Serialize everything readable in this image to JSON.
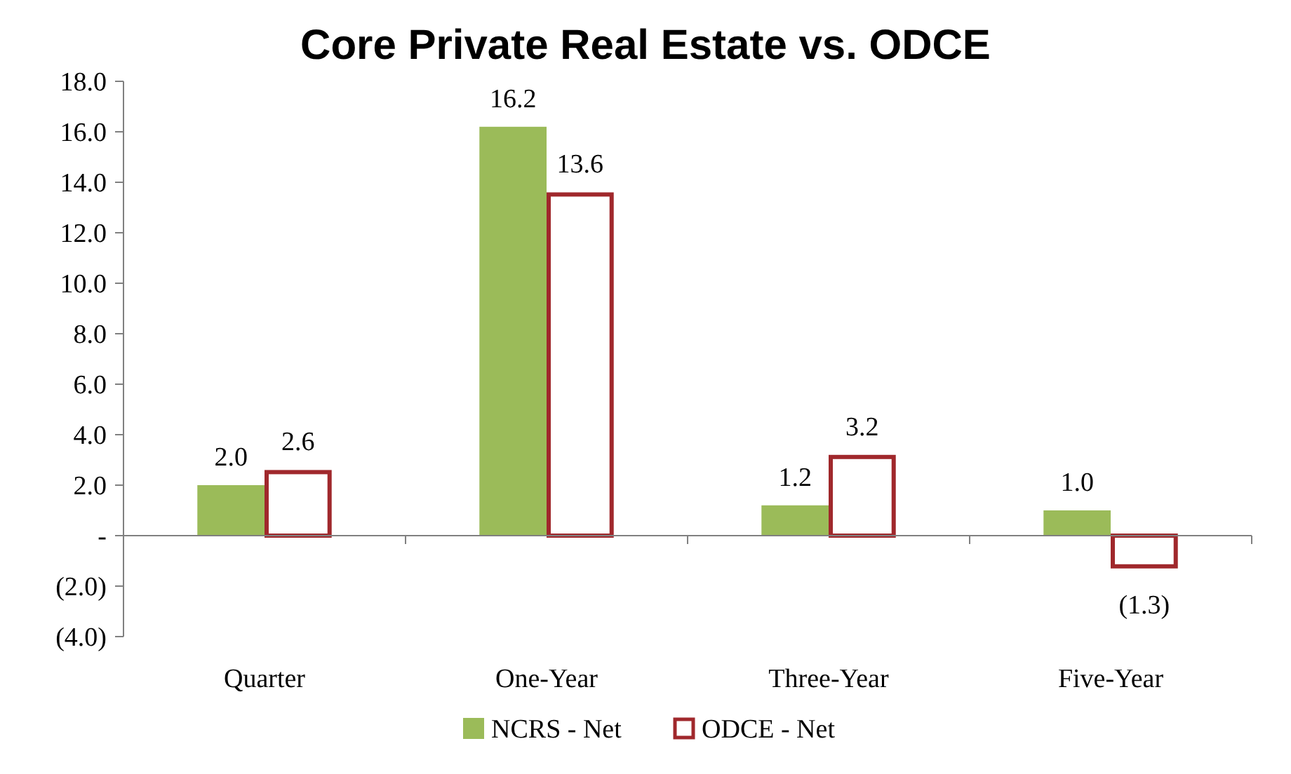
{
  "chart_data": {
    "type": "bar",
    "title": "Core Private Real Estate vs. ODCE",
    "categories": [
      "Quarter",
      "One-Year",
      "Three-Year",
      "Five-Year"
    ],
    "series": [
      {
        "name": "NCRS - Net",
        "color": "#9bbb59",
        "values": [
          2.0,
          16.2,
          1.2,
          1.0
        ],
        "value_labels": [
          "2.0",
          "16.2",
          "1.2",
          "1.0"
        ]
      },
      {
        "name": "ODCE - Net",
        "color": "#a0282c",
        "values": [
          2.6,
          13.6,
          3.2,
          -1.3
        ],
        "value_labels": [
          "2.6",
          "13.6",
          "3.2",
          "(1.3)"
        ]
      }
    ],
    "ylim": [
      -4,
      18
    ],
    "yticks": [
      {
        "value": -4,
        "label": "(4.0)"
      },
      {
        "value": -2,
        "label": "(2.0)"
      },
      {
        "value": 0,
        "label": "-"
      },
      {
        "value": 2,
        "label": "2.0"
      },
      {
        "value": 4,
        "label": "4.0"
      },
      {
        "value": 6,
        "label": "6.0"
      },
      {
        "value": 8,
        "label": "8.0"
      },
      {
        "value": 10,
        "label": "10.0"
      },
      {
        "value": 12,
        "label": "12.0"
      },
      {
        "value": 14,
        "label": "14.0"
      },
      {
        "value": 16,
        "label": "16.0"
      },
      {
        "value": 18,
        "label": "18.0"
      }
    ],
    "legend": "bottom"
  }
}
